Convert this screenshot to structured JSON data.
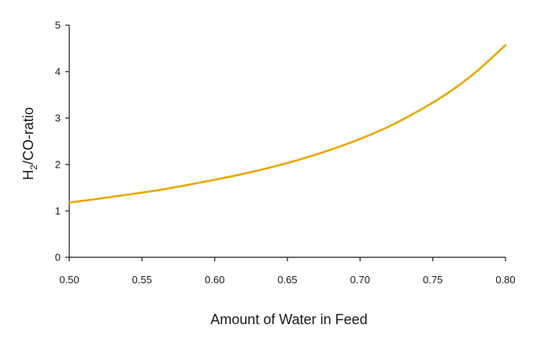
{
  "chart_data": {
    "type": "line",
    "title": "",
    "xlabel": "Amount of Water in Feed",
    "ylabel_main": "H",
    "ylabel_sub": "2",
    "ylabel_rest": "/CO-ratio",
    "xlim": [
      0.5,
      0.8
    ],
    "ylim": [
      0,
      5
    ],
    "xticks": [
      "0.50",
      "0.55",
      "0.60",
      "0.65",
      "0.70",
      "0.75",
      "0.80"
    ],
    "yticks": [
      "0",
      "1",
      "2",
      "3",
      "4",
      "5"
    ],
    "grid": false,
    "legend": "none",
    "series": [
      {
        "color": "#E8A800",
        "x": [
          0.5,
          0.52,
          0.54,
          0.56,
          0.58,
          0.6,
          0.62,
          0.64,
          0.66,
          0.68,
          0.7,
          0.72,
          0.74,
          0.76,
          0.78,
          0.8
        ],
        "y": [
          1.18,
          1.26,
          1.35,
          1.44,
          1.55,
          1.67,
          1.8,
          1.95,
          2.12,
          2.32,
          2.55,
          2.82,
          3.15,
          3.53,
          4.0,
          4.57
        ]
      }
    ]
  }
}
